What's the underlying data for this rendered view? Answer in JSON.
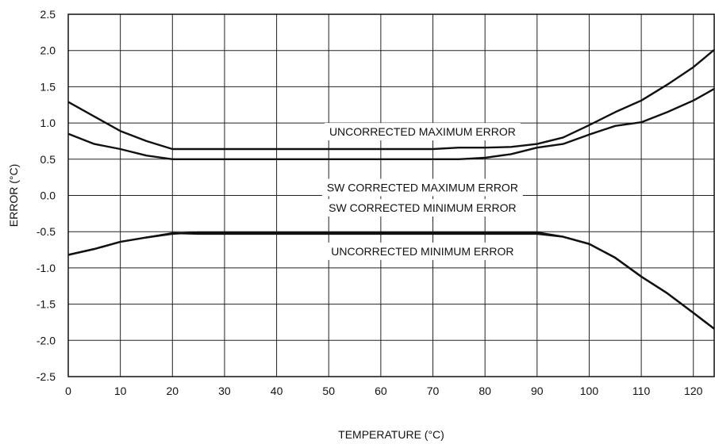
{
  "chart_data": {
    "type": "line",
    "xlabel": "TEMPERATURE (°C)",
    "ylabel": "ERROR (°C)",
    "xlim": [
      0,
      124
    ],
    "ylim": [
      -2.5,
      2.5
    ],
    "grid": true,
    "x_ticks": [
      0,
      10,
      20,
      30,
      40,
      50,
      60,
      70,
      80,
      90,
      100,
      110,
      120
    ],
    "y_ticks": [
      "2.5",
      "2.0",
      "1.5",
      "1.0",
      "0.5",
      "0.0",
      "-0.5",
      "-1.0",
      "-1.5",
      "-2.0",
      "-2.5"
    ],
    "annotations": [
      {
        "text": "UNCORRECTED MAXIMUM ERROR",
        "x": 68,
        "y": 0.88
      },
      {
        "text": "SW CORRECTED MAXIMUM ERROR",
        "x": 68,
        "y": 0.11
      },
      {
        "text": "SW CORRECTED MINIMUM ERROR",
        "x": 68,
        "y": -0.17
      },
      {
        "text": "UNCORRECTED MINIMUM ERROR",
        "x": 68,
        "y": -0.77
      }
    ],
    "series": [
      {
        "x": [
          0,
          5,
          10,
          15,
          20,
          30,
          40,
          50,
          60,
          70,
          75,
          80,
          85,
          90,
          95,
          100,
          105,
          110,
          115,
          120,
          124
        ],
        "values": [
          1.29,
          1.09,
          0.89,
          0.75,
          0.64,
          0.64,
          0.64,
          0.64,
          0.64,
          0.64,
          0.66,
          0.66,
          0.67,
          0.71,
          0.8,
          0.97,
          1.15,
          1.31,
          1.53,
          1.77,
          2.01
        ]
      },
      {
        "x": [
          0,
          5,
          10,
          15,
          20,
          30,
          40,
          50,
          60,
          70,
          75,
          80,
          85,
          90,
          95,
          100,
          105,
          110,
          115,
          120,
          124
        ],
        "values": [
          0.85,
          0.71,
          0.64,
          0.55,
          0.5,
          0.5,
          0.5,
          0.5,
          0.5,
          0.5,
          0.5,
          0.52,
          0.57,
          0.66,
          0.71,
          0.84,
          0.96,
          1.01,
          1.15,
          1.31,
          1.47
        ]
      },
      {
        "x": [
          0,
          5,
          10,
          15,
          20,
          25,
          30,
          40,
          50,
          60,
          70,
          80,
          90,
          95,
          100,
          105,
          110,
          115,
          120,
          124
        ],
        "values": [
          -0.82,
          -0.74,
          -0.64,
          -0.58,
          -0.53,
          -0.51,
          -0.51,
          -0.51,
          -0.51,
          -0.51,
          -0.51,
          -0.51,
          -0.51,
          -0.57,
          -0.67,
          -0.86,
          -1.12,
          -1.35,
          -1.62,
          -1.84
        ]
      },
      {
        "x": [
          0,
          5,
          10,
          15,
          20,
          25,
          30,
          40,
          50,
          60,
          70,
          80,
          90,
          95,
          100,
          105,
          110,
          115,
          120,
          124
        ],
        "values": [
          -0.82,
          -0.74,
          -0.64,
          -0.58,
          -0.52,
          -0.53,
          -0.53,
          -0.53,
          -0.53,
          -0.53,
          -0.53,
          -0.53,
          -0.53,
          -0.57,
          -0.67,
          -0.86,
          -1.12,
          -1.35,
          -1.62,
          -1.84
        ]
      }
    ]
  }
}
